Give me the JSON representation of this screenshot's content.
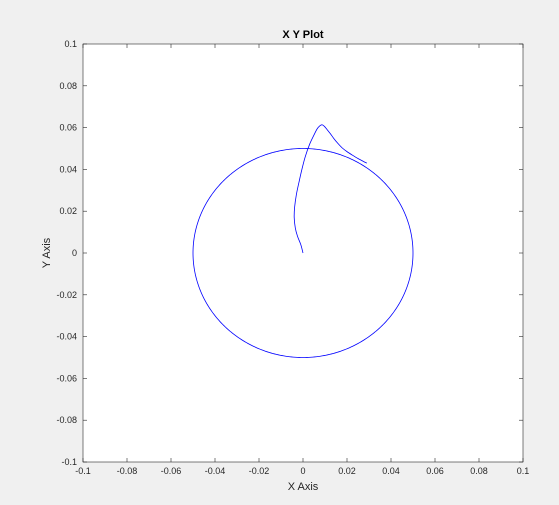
{
  "chart_data": {
    "type": "line",
    "title": "X Y Plot",
    "xlabel": "X Axis",
    "ylabel": "Y Axis",
    "xlim": [
      -0.1,
      0.1
    ],
    "ylim": [
      -0.1,
      0.1
    ],
    "x_ticks": [
      -0.1,
      -0.08,
      -0.06,
      -0.04,
      -0.02,
      0,
      0.02,
      0.04,
      0.06,
      0.08,
      0.1
    ],
    "x_tick_labels": [
      "-0.1",
      "-0.08",
      "-0.06",
      "-0.04",
      "-0.02",
      "0",
      "0.02",
      "0.04",
      "0.06",
      "0.08",
      "0.1"
    ],
    "y_ticks": [
      -0.1,
      -0.08,
      -0.06,
      -0.04,
      -0.02,
      0,
      0.02,
      0.04,
      0.06,
      0.08,
      0.1
    ],
    "y_tick_labels": [
      "-0.1",
      "-0.08",
      "-0.06",
      "-0.04",
      "-0.02",
      "0",
      "0.02",
      "0.04",
      "0.06",
      "0.08",
      "0.1"
    ],
    "grid": false,
    "series": [
      {
        "color": "#0000ff",
        "shape": "circle",
        "center": [
          0,
          0
        ],
        "radius": 0.05
      },
      {
        "color": "#0000ff",
        "shape": "path",
        "x": [
          0,
          -0.001,
          -0.0025,
          -0.0035,
          -0.004,
          -0.0038,
          -0.003,
          -0.0018,
          -0.0005,
          0.001,
          0.003,
          0.005,
          0.0065,
          0.0078,
          0.0088,
          0.0098,
          0.011,
          0.0125,
          0.014,
          0.0158,
          0.0178,
          0.02,
          0.0225,
          0.025,
          0.0275,
          0.029
        ],
        "y": [
          0,
          0.004,
          0.008,
          0.012,
          0.017,
          0.022,
          0.028,
          0.034,
          0.04,
          0.046,
          0.052,
          0.0565,
          0.0595,
          0.061,
          0.0613,
          0.0605,
          0.059,
          0.057,
          0.0548,
          0.0525,
          0.0503,
          0.0485,
          0.0468,
          0.0452,
          0.0438,
          0.043
        ]
      }
    ]
  },
  "colors": {
    "figure_background": "#f0f0f0",
    "axes_background": "#ffffff",
    "axis_color": "#262626",
    "line_color": "#0000ff"
  }
}
